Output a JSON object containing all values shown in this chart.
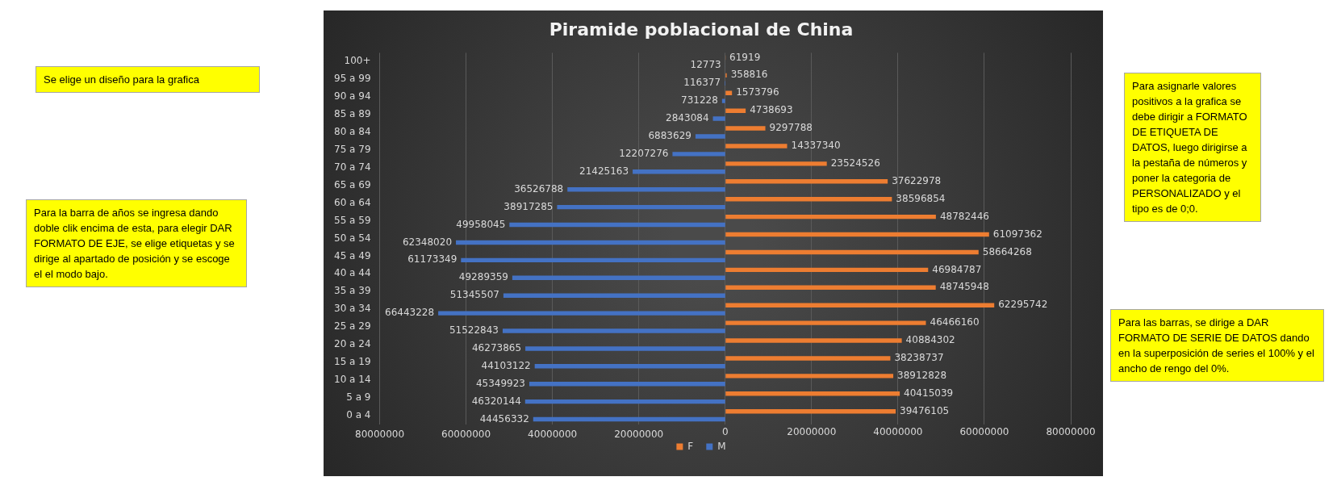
{
  "chart_data": {
    "type": "bar",
    "orientation": "horizontal",
    "title": "Piramide poblacional de China",
    "categories": [
      "100+",
      "95 a 99",
      "90 a 94",
      "85 a 89",
      "80 a 84",
      "75 a 79",
      "70 a 74",
      "65 a 69",
      "60 a 64",
      "55 a 59",
      "50 a 54",
      "45 a 49",
      "40 a 44",
      "35 a 39",
      "30 a 34",
      "25 a 29",
      "20 a 24",
      "15 a 19",
      "10 a 14",
      "5 a 9",
      "0 a 4"
    ],
    "series": [
      {
        "name": "F",
        "color": "#ed7d31",
        "axis": "x2",
        "values": [
          61919,
          358816,
          1573796,
          4738693,
          9297788,
          14337340,
          23524526,
          37622978,
          38596854,
          48782446,
          61097362,
          58664268,
          46984787,
          48745948,
          62295742,
          46466160,
          40884302,
          38238737,
          38912828,
          40415039,
          39476105
        ]
      },
      {
        "name": "M",
        "color": "#4472c4",
        "values": [
          12773,
          116377,
          731228,
          2843084,
          6883629,
          12207276,
          21425163,
          36526788,
          38917285,
          49958045,
          62348020,
          61173349,
          49289359,
          51345507,
          66443228,
          51522843,
          46273865,
          44103122,
          45349923,
          46320144,
          44456332
        ]
      }
    ],
    "data_labels": true,
    "xlim": [
      80000000,
      -80000000
    ],
    "xticks": [
      80000000,
      60000000,
      40000000,
      20000000
    ],
    "x2lim": [
      -80000000,
      80000000
    ],
    "x2ticks": [
      0,
      20000000,
      40000000,
      60000000,
      80000000
    ],
    "grid": "x",
    "legend": "bottom",
    "annotations": [
      "Se elige un diseño para la grafica",
      "Para la barra de años se ingresa dando doble clik encima de esta, para elegir DAR FORMATO DE EJE, se elige etiquetas y se dirige al apartado de posición y se escoge el el modo bajo.",
      "Para asignarle valores positivos a la grafica se debe dirigir a FORMATO DE ETIQUETA DE DATOS, luego dirigirse a la pestaña de números y poner la categoria de PERSONALIZADO y el tipo es de 0;0.",
      "Para las barras, se dirige a DAR FORMATO DE SERIE DE DATOS dando en la superposición de series el 100% y el ancho de rengo del 0%."
    ]
  }
}
